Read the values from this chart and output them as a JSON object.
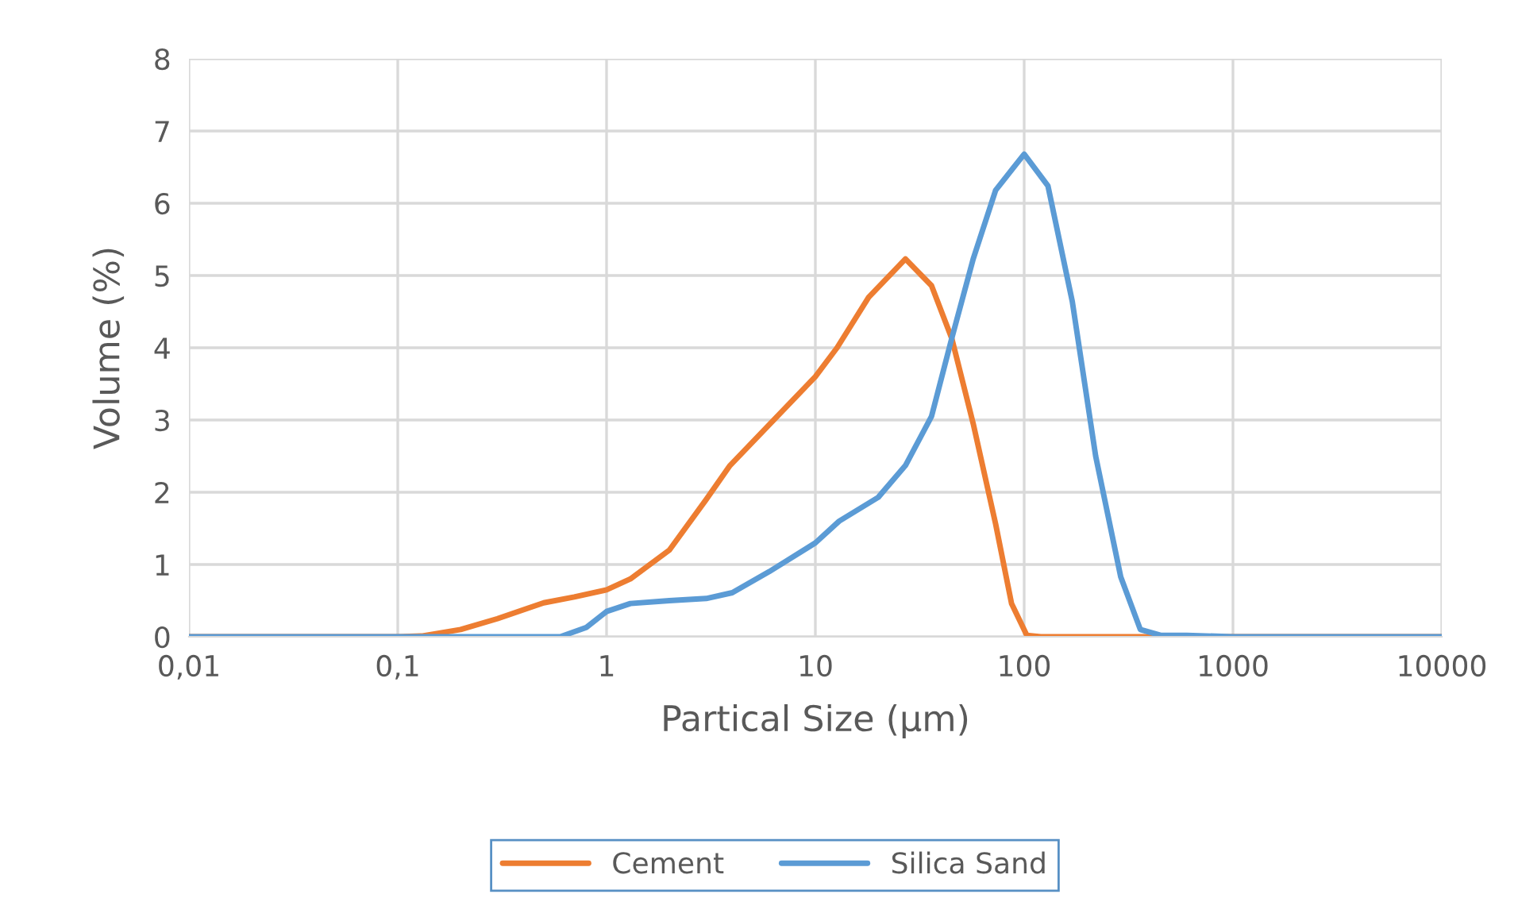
{
  "chart_data": {
    "type": "line",
    "xlabel": "Partical Size (µm)",
    "ylabel": "Volume (%)",
    "log": "x",
    "xlim": [
      0.01,
      10000
    ],
    "xticks": [
      {
        "value": 0.01,
        "label": "0,01"
      },
      {
        "value": 0.1,
        "label": "0,1"
      },
      1,
      10,
      100,
      1000,
      10000
    ],
    "ylim": [
      0,
      8
    ],
    "yticks": [
      0,
      1,
      2,
      3,
      4,
      5,
      6,
      7,
      8
    ],
    "grid": true,
    "legend": "bottom",
    "marker": "none",
    "line_style": "solid",
    "series": [
      {
        "name": "Cement",
        "color": "#ed7d31",
        "x": [
          0.01,
          0.1,
          0.13,
          0.2,
          0.3,
          0.5,
          0.7,
          1,
          1.3,
          2,
          3,
          3.9,
          10,
          12.7,
          18,
          27,
          36,
          45,
          57,
          73,
          87,
          103,
          120,
          10000
        ],
        "values": [
          0,
          0,
          0.01,
          0.1,
          0.25,
          0.47,
          0.55,
          0.65,
          0.8,
          1.2,
          1.9,
          2.37,
          3.6,
          4.0,
          4.7,
          5.23,
          4.86,
          4.13,
          2.95,
          1.56,
          0.46,
          0.02,
          0,
          0
        ]
      },
      {
        "name": "Silica Sand",
        "color": "#5b9bd5",
        "x": [
          0.01,
          0.6,
          0.8,
          1,
          1.3,
          2,
          3,
          4,
          6,
          10,
          13,
          20,
          27,
          36,
          45,
          57,
          73,
          100,
          130,
          170,
          220,
          290,
          360,
          450,
          600,
          1000,
          10000
        ],
        "values": [
          0,
          0,
          0.13,
          0.35,
          0.46,
          0.5,
          0.53,
          0.61,
          0.9,
          1.3,
          1.6,
          1.93,
          2.37,
          3.05,
          4.13,
          5.23,
          6.18,
          6.68,
          6.24,
          4.64,
          2.5,
          0.83,
          0.1,
          0.02,
          0.02,
          0,
          0
        ]
      }
    ]
  }
}
